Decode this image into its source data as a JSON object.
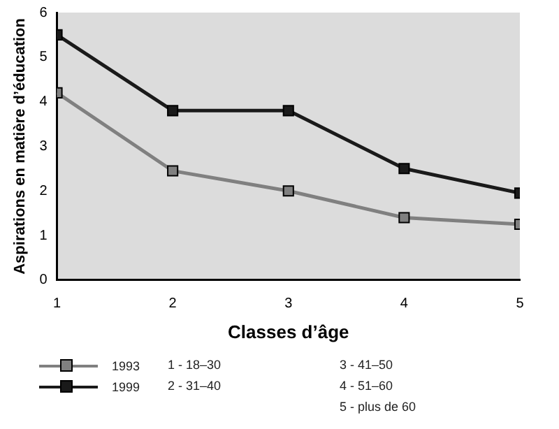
{
  "chart_data": {
    "type": "line",
    "xlabel": "Classes d’âge",
    "ylabel": "Aspirations en matière d’éducation",
    "x": [
      1,
      2,
      3,
      4,
      5
    ],
    "series": [
      {
        "name": "1993",
        "color": "#808080",
        "values": [
          4.2,
          2.45,
          2.0,
          1.4,
          1.25
        ]
      },
      {
        "name": "1999",
        "color": "#1a1a1a",
        "values": [
          5.5,
          3.8,
          3.8,
          2.5,
          1.95
        ]
      }
    ],
    "xlim": [
      1,
      5
    ],
    "xticks": [
      1,
      2,
      3,
      4,
      5
    ],
    "ylim": [
      0,
      6
    ],
    "yticks": [
      0,
      1,
      2,
      3,
      4,
      5,
      6
    ],
    "grid": false,
    "legend": "bottom left",
    "marker": "square",
    "line_style": "solid",
    "annotations": [
      "1 - 18–30",
      "2 - 31–40",
      "3 - 41–50",
      "4 - 51–60",
      "5 - plus de 60"
    ]
  }
}
